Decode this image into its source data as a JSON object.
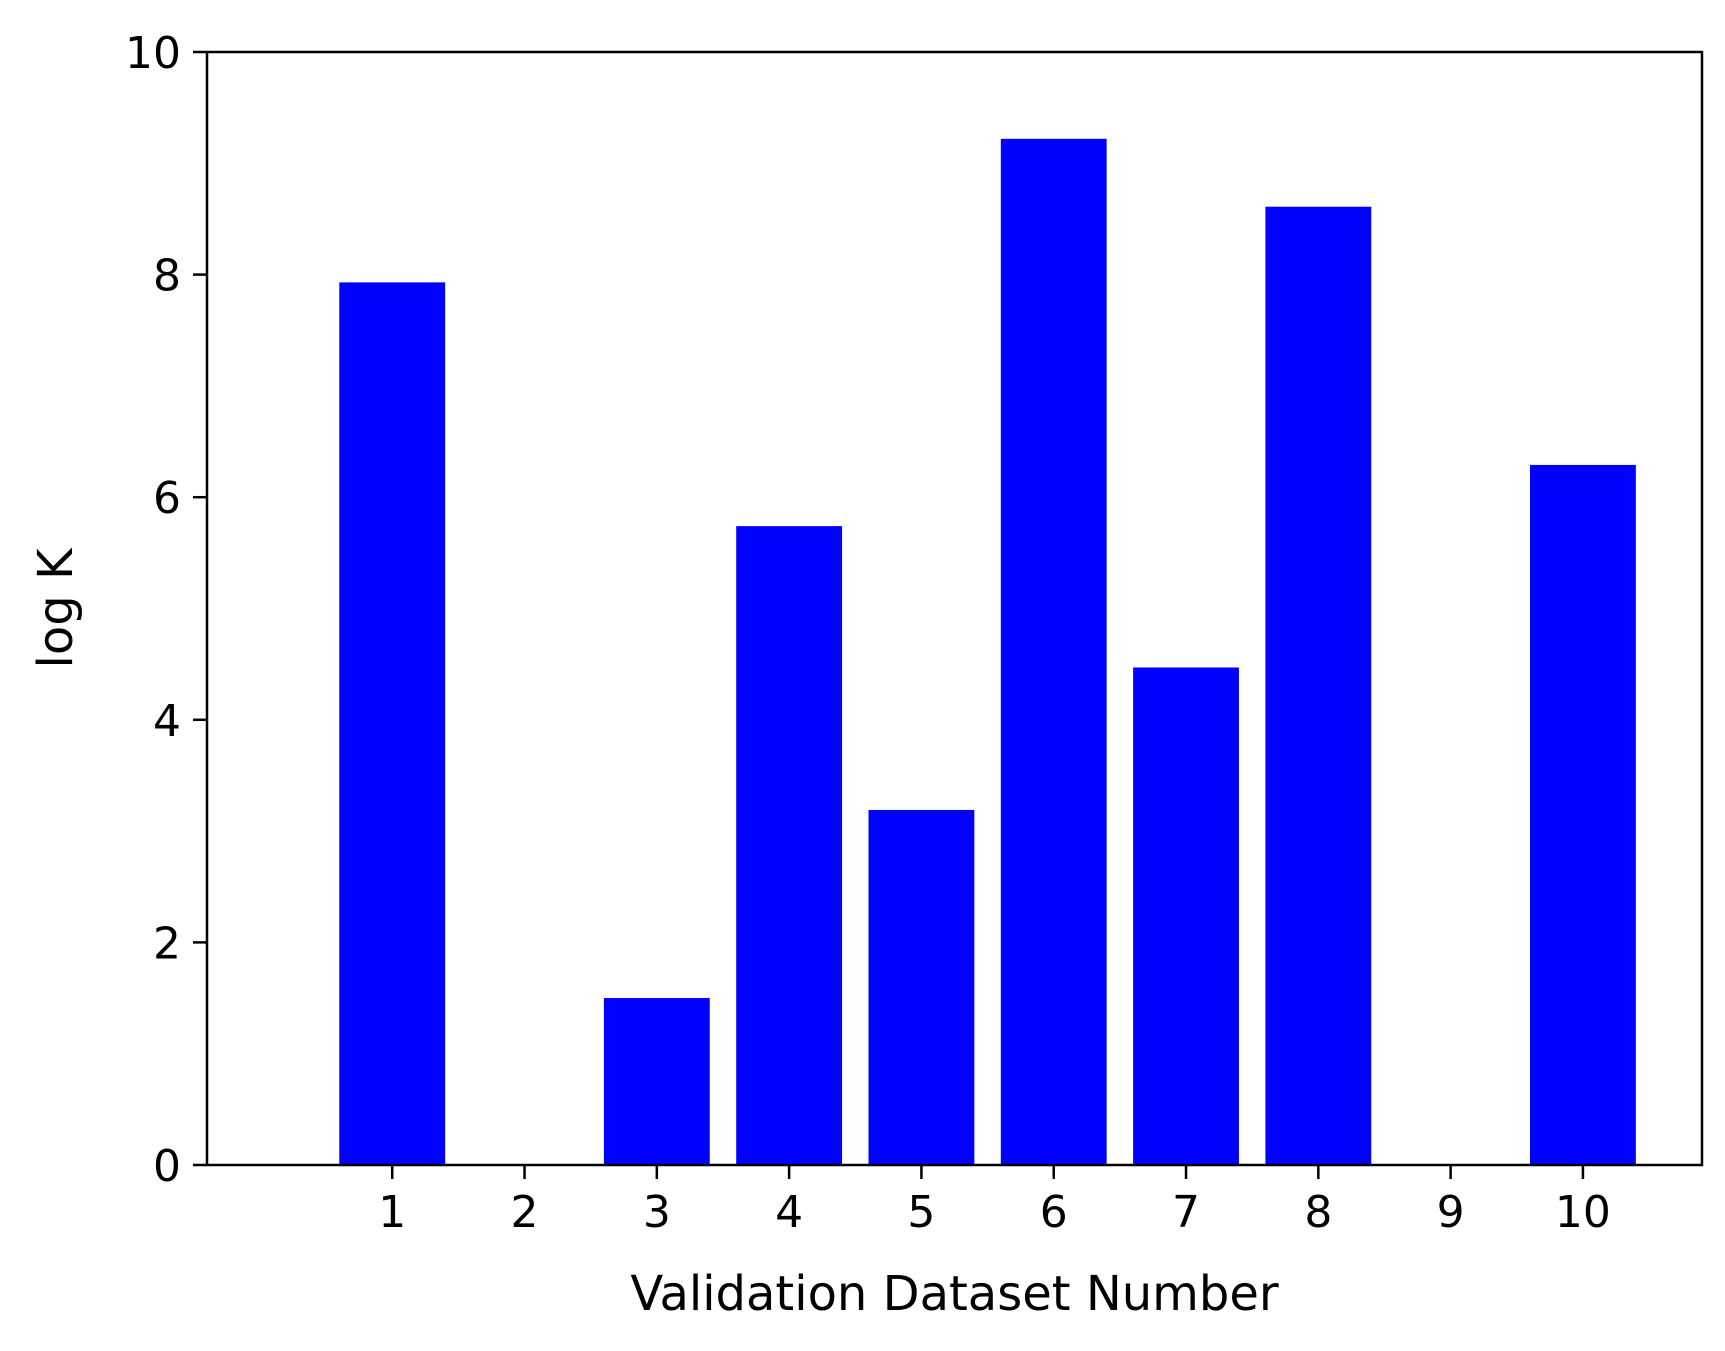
{
  "chart_data": {
    "type": "bar",
    "categories": [
      "1",
      "2",
      "3",
      "4",
      "5",
      "6",
      "7",
      "8",
      "9",
      "10"
    ],
    "values": [
      7.93,
      0,
      1.5,
      5.74,
      3.19,
      9.22,
      4.47,
      8.61,
      0,
      6.29
    ],
    "title": "",
    "xlabel": "Validation Dataset Number",
    "ylabel": "log K",
    "ylim": [
      0,
      10
    ],
    "yticks": [
      "0",
      "2",
      "4",
      "6",
      "8",
      "10"
    ],
    "grid": false,
    "legend": "none",
    "bar_color": "#0000ff"
  }
}
